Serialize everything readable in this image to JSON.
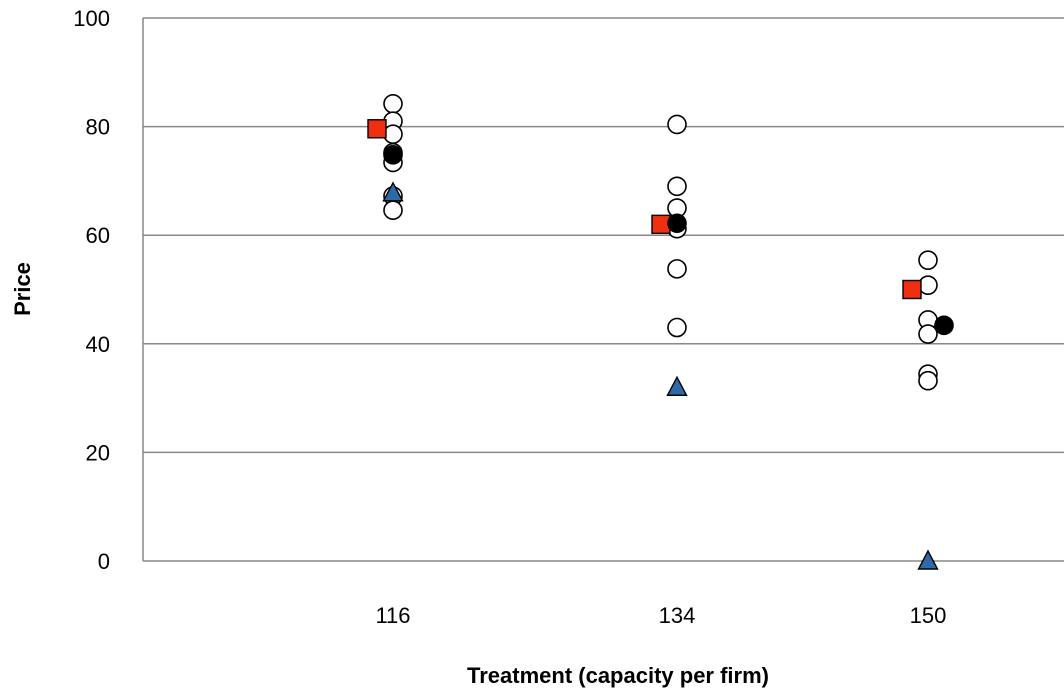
{
  "chart_data": {
    "type": "scatter",
    "xlabel": "Treatment (capacity per firm)",
    "ylabel": "Price",
    "categories": [
      "116",
      "134",
      "150"
    ],
    "ylim": [
      0,
      100
    ],
    "yticks": [
      0,
      20,
      40,
      60,
      80,
      100
    ],
    "grid": true,
    "series": [
      {
        "marker": "open-circle",
        "color": "#ffffff",
        "points": [
          {
            "x": "116",
            "y": 84.2
          },
          {
            "x": "116",
            "y": 81.0
          },
          {
            "x": "116",
            "y": 78.6
          },
          {
            "x": "116",
            "y": 75.2
          },
          {
            "x": "116",
            "y": 73.4
          },
          {
            "x": "116",
            "y": 67.2
          },
          {
            "x": "116",
            "y": 64.6
          },
          {
            "x": "134",
            "y": 80.4
          },
          {
            "x": "134",
            "y": 69.0
          },
          {
            "x": "134",
            "y": 65.0
          },
          {
            "x": "134",
            "y": 61.2
          },
          {
            "x": "134",
            "y": 53.8
          },
          {
            "x": "134",
            "y": 43.0
          },
          {
            "x": "150",
            "y": 55.4
          },
          {
            "x": "150",
            "y": 50.8
          },
          {
            "x": "150",
            "y": 44.4
          },
          {
            "x": "150",
            "y": 41.8
          },
          {
            "x": "150",
            "y": 34.4
          },
          {
            "x": "150",
            "y": 33.2
          }
        ]
      },
      {
        "marker": "square",
        "color": "#ee3010",
        "points": [
          {
            "x": "116",
            "y": 79.6
          },
          {
            "x": "134",
            "y": 62.0
          },
          {
            "x": "150",
            "y": 50.0
          }
        ]
      },
      {
        "marker": "filled-circle",
        "color": "#000000",
        "points": [
          {
            "x": "116",
            "y": 74.8
          },
          {
            "x": "134",
            "y": 62.2
          },
          {
            "x": "150",
            "y": 43.4
          }
        ]
      },
      {
        "marker": "triangle",
        "color": "#2f6aa8",
        "points": [
          {
            "x": "116",
            "y": 67.8
          },
          {
            "x": "134",
            "y": 32.0
          },
          {
            "x": "150",
            "y": 0.0
          }
        ]
      }
    ]
  }
}
